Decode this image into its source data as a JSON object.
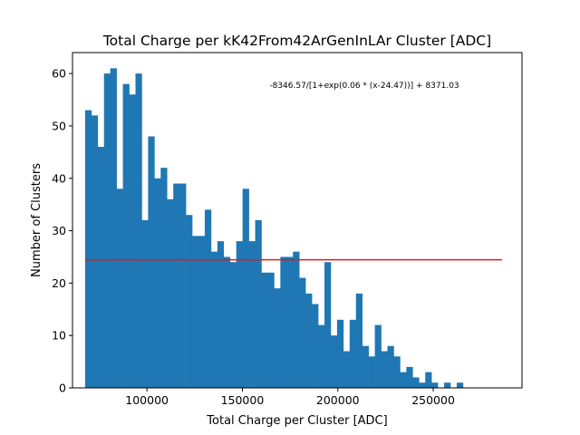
{
  "chart_data": {
    "type": "bar",
    "title": "Total Charge per kK42From42ArGenInLAr Cluster [ADC]",
    "xlabel": "Total Charge per Cluster [ADC]",
    "ylabel": "Number of Clusters",
    "xlim": [
      61000,
      296500
    ],
    "ylim": [
      0,
      64
    ],
    "xticks": [
      100000,
      150000,
      200000,
      250000
    ],
    "yticks": [
      0,
      10,
      20,
      30,
      40,
      50,
      60
    ],
    "grid": false,
    "bin_start": 67600,
    "bin_width": 3300,
    "values": [
      53,
      52,
      46,
      60,
      61,
      38,
      58,
      56,
      60,
      32,
      48,
      40,
      42,
      36,
      39,
      39,
      33,
      29,
      29,
      34,
      26,
      28,
      25,
      24,
      28,
      38,
      28,
      32,
      22,
      22,
      19,
      25,
      25,
      26,
      21,
      18,
      16,
      12,
      24,
      10,
      13,
      7,
      13,
      18,
      8,
      6,
      12,
      7,
      8,
      6,
      3,
      4,
      2,
      1,
      3,
      1,
      0,
      1,
      0,
      1
    ],
    "bar_color": "#1f77b4",
    "fit": {
      "label": "-8346.57/[1+exp(0.06 * (x-24.47))] + 8371.03",
      "x_range": [
        67600,
        286000
      ],
      "y_value": 24.46,
      "color": "#e41a1c"
    }
  }
}
